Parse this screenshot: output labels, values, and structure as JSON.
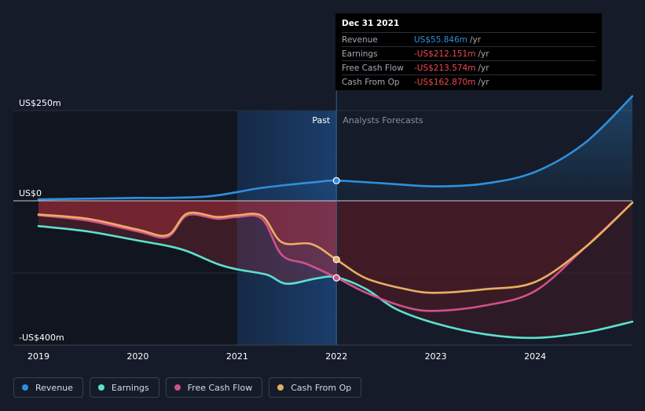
{
  "colors": {
    "revenue": "#2f8fdc",
    "earnings": "#5ee0d0",
    "fcf": "#d0518a",
    "cfo": "#e8ae63",
    "negative_text": "#f0484f",
    "positive_text": "#2f8fdc",
    "neg_fill_past": "#b0303c",
    "neg_fill_forecast": "#4a1c26"
  },
  "tooltip": {
    "date": "Dec 31 2021",
    "rows": [
      {
        "name": "Revenue",
        "value": "US$55.846m",
        "unit": "/yr",
        "sign": "positive"
      },
      {
        "name": "Earnings",
        "value": "-US$212.151m",
        "unit": "/yr",
        "sign": "negative"
      },
      {
        "name": "Free Cash Flow",
        "value": "-US$213.574m",
        "unit": "/yr",
        "sign": "negative"
      },
      {
        "name": "Cash From Op",
        "value": "-US$162.870m",
        "unit": "/yr",
        "sign": "negative"
      }
    ]
  },
  "legend": [
    {
      "label": "Revenue",
      "color_key": "revenue"
    },
    {
      "label": "Earnings",
      "color_key": "earnings"
    },
    {
      "label": "Free Cash Flow",
      "color_key": "fcf"
    },
    {
      "label": "Cash From Op",
      "color_key": "cfo"
    }
  ],
  "chart_data": {
    "type": "line",
    "title": "",
    "y_unit": "US$ m",
    "ylim": [
      -400,
      250
    ],
    "y_tick_labels": [
      {
        "value": 250,
        "label": "US$250m"
      },
      {
        "value": 0,
        "label": "US$0"
      },
      {
        "value": -400,
        "label": "-US$400m"
      }
    ],
    "xlim": [
      2019.0,
      2024.98
    ],
    "x_ticks": [
      {
        "value": 2019,
        "label": "2019"
      },
      {
        "value": 2020,
        "label": "2020"
      },
      {
        "value": 2021,
        "label": "2021"
      },
      {
        "value": 2022,
        "label": "2022"
      },
      {
        "value": 2023,
        "label": "2023"
      },
      {
        "value": 2024,
        "label": "2024"
      }
    ],
    "past_label": "Past",
    "forecast_label": "Analysts Forecasts",
    "divider_x": 2022.0,
    "highlight_start_x": 2021.0,
    "series": [
      {
        "name": "Revenue",
        "color_key": "revenue",
        "x": [
          2019.0,
          2019.5,
          2020.0,
          2020.3,
          2020.7,
          2021.0,
          2021.2,
          2021.5,
          2021.8,
          2022.0,
          2022.5,
          2023.0,
          2023.5,
          2024.0,
          2024.5,
          2024.98
        ],
        "y": [
          4,
          6,
          8,
          8,
          12,
          24,
          34,
          44,
          52,
          56,
          48,
          40,
          48,
          80,
          160,
          290
        ]
      },
      {
        "name": "Earnings",
        "color_key": "earnings",
        "x": [
          2019.0,
          2019.5,
          2020.0,
          2020.3,
          2020.5,
          2020.8,
          2021.0,
          2021.3,
          2021.5,
          2021.8,
          2022.0,
          2022.3,
          2022.6,
          2023.0,
          2023.5,
          2024.0,
          2024.5,
          2024.98
        ],
        "y": [
          -70,
          -85,
          -110,
          -125,
          -140,
          -175,
          -190,
          -205,
          -230,
          -215,
          -212,
          -245,
          -300,
          -340,
          -370,
          -380,
          -365,
          -335
        ]
      },
      {
        "name": "Free Cash Flow",
        "color_key": "fcf",
        "x": [
          2019.0,
          2019.5,
          2020.0,
          2020.3,
          2020.5,
          2020.8,
          2021.0,
          2021.25,
          2021.45,
          2021.7,
          2022.0,
          2022.3,
          2022.7,
          2023.0,
          2023.5,
          2024.0,
          2024.5,
          2024.98
        ],
        "y": [
          -40,
          -55,
          -85,
          -100,
          -40,
          -50,
          -45,
          -50,
          -150,
          -175,
          -213,
          -255,
          -295,
          -305,
          -290,
          -250,
          -130,
          -5
        ]
      },
      {
        "name": "Cash From Op",
        "color_key": "cfo",
        "x": [
          2019.0,
          2019.5,
          2020.0,
          2020.3,
          2020.5,
          2020.8,
          2021.0,
          2021.25,
          2021.45,
          2021.75,
          2022.0,
          2022.3,
          2022.7,
          2023.0,
          2023.5,
          2024.0,
          2024.5,
          2024.98
        ],
        "y": [
          -38,
          -50,
          -80,
          -95,
          -35,
          -45,
          -40,
          -42,
          -115,
          -120,
          -163,
          -215,
          -245,
          -255,
          -245,
          -225,
          -130,
          -5
        ]
      }
    ],
    "highlight_points": [
      {
        "series": "Revenue",
        "x": 2022.0,
        "y": 55.846
      },
      {
        "series": "Cash From Op",
        "x": 2022.0,
        "y": -162.87
      },
      {
        "series": "Free Cash Flow",
        "x": 2022.0,
        "y": -213.574
      }
    ]
  }
}
